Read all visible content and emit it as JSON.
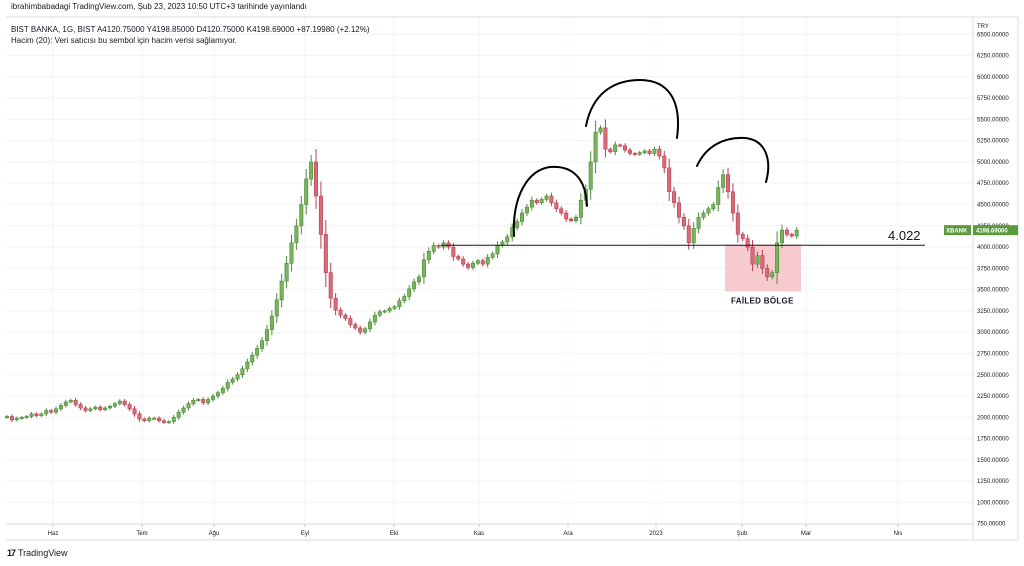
{
  "header": {
    "publisher_line": "ibrahimbabadagi TradingView.com, Şub 23, 2023 10:50 UTC+3 tarihinde yayınlandı",
    "symbol_line": "BIST BANKA, 1G, BIST  A4120.75000  Y4198.85000  D4120.75000  K4198.69000  +87.19980 (+2.12%)",
    "volume_line": "Hacim (20): Veri satıcısı bu sembol için hacim verisi sağlamıyor."
  },
  "footer": {
    "logo_mark": "17",
    "brand": "TradingView"
  },
  "chart_data": {
    "type": "candlestick",
    "currency": "TRY",
    "ylim": [
      500,
      6750
    ],
    "y_ticks": [
      "6500.00000",
      "6250.00000",
      "6000.00000",
      "5750.00000",
      "5500.00000",
      "5250.00000",
      "5000.00000",
      "4750.00000",
      "4500.00000",
      "4250.00000",
      "4000.00000",
      "3750.00000",
      "3500.00000",
      "3250.00000",
      "3000.00000",
      "2750.00000",
      "2500.00000",
      "2250.00000",
      "2000.00000",
      "1750.00000",
      "1500.00000",
      "1250.00000",
      "1000.00000",
      "750.00000"
    ],
    "x_labels": [
      "Haz",
      "Tem",
      "Ağu",
      "Eyl",
      "Eki",
      "Kas",
      "Ara",
      "2023",
      "Şub",
      "Mar",
      "Nis"
    ],
    "series_label": {
      "symbol": "XBANK",
      "price": "4198.69000",
      "value": 4198.69,
      "color": "#5b9a3c"
    },
    "closes": [
      2010,
      1970,
      1990,
      2000,
      2010,
      2040,
      2020,
      2040,
      2080,
      2060,
      2100,
      2140,
      2180,
      2200,
      2150,
      2110,
      2080,
      2100,
      2120,
      2090,
      2110,
      2130,
      2160,
      2190,
      2150,
      2100,
      2040,
      1980,
      1960,
      1990,
      1990,
      1960,
      1940,
      1950,
      2000,
      2060,
      2110,
      2160,
      2200,
      2210,
      2170,
      2210,
      2250,
      2290,
      2340,
      2410,
      2450,
      2500,
      2570,
      2650,
      2730,
      2810,
      2900,
      3030,
      3190,
      3380,
      3600,
      3810,
      4050,
      4250,
      4500,
      4800,
      5000,
      4600,
      4150,
      3700,
      3400,
      3260,
      3200,
      3160,
      3090,
      3050,
      3000,
      3040,
      3120,
      3200,
      3240,
      3250,
      3280,
      3300,
      3370,
      3420,
      3510,
      3590,
      3650,
      3850,
      3950,
      4020,
      4000,
      4050,
      4000,
      3890,
      3860,
      3800,
      3760,
      3810,
      3840,
      3800,
      3880,
      3920,
      4020,
      4060,
      4120,
      4230,
      4300,
      4400,
      4470,
      4550,
      4520,
      4560,
      4600,
      4520,
      4450,
      4400,
      4330,
      4310,
      4350,
      4550,
      4680,
      5000,
      5350,
      5400,
      5150,
      5120,
      5200,
      5190,
      5140,
      5100,
      5090,
      5110,
      5130,
      5100,
      5150,
      5070,
      4930,
      4650,
      4520,
      4350,
      4250,
      4050,
      4220,
      4350,
      4400,
      4450,
      4500,
      4700,
      4850,
      4650,
      4400,
      4150,
      4100,
      4000,
      3800,
      3900,
      3750,
      3650,
      3700,
      4050,
      4200,
      4150,
      4130,
      4199
    ],
    "x_data_range": [
      0,
      160
    ],
    "annotations": [
      {
        "label": "4.022",
        "type": "horizontal-line",
        "value": 4022
      },
      {
        "label": "FAİLED BÖLGE",
        "type": "zone",
        "y_range": [
          3480,
          4030
        ]
      }
    ]
  }
}
